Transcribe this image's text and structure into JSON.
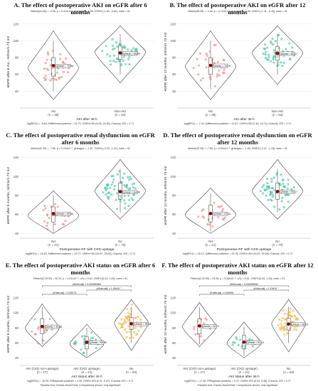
{
  "figure": {
    "panels": [
      {
        "id": "A",
        "title": "A. The effect of postoperative AKI on eGFR after 6 months",
        "stats_top": "tWelch(51.56) = -4.98, p = 5.41x10⁻⁶, ĝHedges = -1.06, CI95% [-1.54, -0.61], nobs = 91",
        "stats_bottom": "log(BF01) = -8.64, δdifference posterior = 14.75, CI95% HDI [9.08, 20.90], rCauchy JZS = 0.71",
        "chart_data": {
          "type": "violin",
          "xlabel": "AKI after 48 h",
          "ylabel": "eGFR after 6 mo., ml/min/1.73 m2",
          "ylim": [
            20,
            130
          ],
          "yticks": [
            40,
            60,
            80,
            100,
            120
          ],
          "categories": [
            "AKI",
            "Non-AKI"
          ],
          "n_labels": [
            "(n = 38)",
            "(n = 53)"
          ],
          "colors": [
            "#e8837e",
            "#3fbfa0"
          ],
          "means": [
            70.56,
            85.54
          ],
          "mean_labels": [
            "μ̂mean = 70.56",
            "μ̂mean = 85.54"
          ],
          "medians": [
            68,
            87
          ],
          "quartiles": [
            [
              58,
              80
            ],
            [
              78,
              94
            ]
          ],
          "whiskers": [
            [
              40,
              100
            ],
            [
              60,
              108
            ]
          ],
          "ranges": [
            [
              30,
              112
            ],
            [
              50,
              118
            ]
          ]
        }
      },
      {
        "id": "B",
        "title": "B. The effect of postoperative AKI on eGFR after 12 months",
        "stats_top": "tWelch(58.55) = -4.40, p = 4.71x10⁻⁵, ĝHedges = -0.95, CI95% [-1.41, -0.49], nobs = 91",
        "stats_bottom": "log(BF01) = -7.34, δdifference posterior = 13.47, CI95% HDI [7.46, 19.71], rCauchy JZS = 0.71",
        "chart_data": {
          "type": "violin",
          "xlabel": "AKI after 48 h",
          "ylabel": "eGFR after 12 months, ml/min/1.73 m2",
          "ylim": [
            20,
            130
          ],
          "yticks": [
            40,
            60,
            80,
            100,
            120
          ],
          "categories": [
            "AKI",
            "Non-AKI"
          ],
          "n_labels": [
            "(n = 38)",
            "(n = 53)"
          ],
          "colors": [
            "#e8837e",
            "#3fbfa0"
          ],
          "means": [
            70.76,
            85.17
          ],
          "mean_labels": [
            "μ̂mean = 70.76",
            "μ̂mean = 85.17"
          ],
          "medians": [
            70,
            86
          ],
          "quartiles": [
            [
              60,
              80
            ],
            [
              77,
              93
            ]
          ],
          "whiskers": [
            [
              42,
              100
            ],
            [
              60,
              108
            ]
          ],
          "ranges": [
            [
              30,
              112
            ],
            [
              48,
              118
            ]
          ]
        }
      },
      {
        "id": "C",
        "title": "C. The effect of postoperative renal dysfunction on eGFR after 6 months",
        "stats_top": "tWelch(32.30) = -7.66, p = 9.23x10⁻⁹, ĝHedges = -1.87, CI95% [-2.53, -1.21], nobs = 91",
        "stats_bottom": "log(BF01) = -16.63, δdifference posterior = 22.77, CI95% HDI [16.57, 28.82], rCauchy JZS = 0.71",
        "chart_data": {
          "type": "violin",
          "xlabel": "Postoperative RF with CKD upstage",
          "ylabel": "eGFR after 6 months, ml/min/1.73 m2",
          "ylim": [
            35,
            125
          ],
          "yticks": [
            40,
            60,
            80,
            100,
            120
          ],
          "categories": [
            "Yes",
            "No"
          ],
          "n_labels": [
            "(n = 21)",
            "(n = 70)"
          ],
          "colors": [
            "#e8837e",
            "#3fbfa0"
          ],
          "means": [
            60.99,
            84.06
          ],
          "mean_labels": [
            "μ̂mean = 60.99",
            "μ̂mean = 84.06"
          ],
          "medians": [
            59,
            85
          ],
          "quartiles": [
            [
              52,
              68
            ],
            [
              76,
              93
            ]
          ],
          "whiskers": [
            [
              42,
              80
            ],
            [
              62,
              108
            ]
          ],
          "ranges": [
            [
              40,
              85
            ],
            [
              55,
              118
            ]
          ]
        }
      },
      {
        "id": "D",
        "title": "D. The effect of postoperative renal dysfunction on eGFR after 12 months",
        "stats_top": "tWelch(33.39) = -7.56, p = 9.93x10⁻⁹, ĝHedges = -1.83, CI95% [-2.47, -1.18], nobs = 91",
        "stats_bottom": "log(BF01) = -16.12, δdifference posterior = 22.76, CI95% HDI [16.57, 29.08], rCauchy JZS = 0.71",
        "chart_data": {
          "type": "violin",
          "xlabel": "Postoperative RF with CKD upstage",
          "ylabel": "eGFR after 12 months, ml/min/1.73 m2",
          "ylim": [
            35,
            125
          ],
          "yticks": [
            40,
            60,
            80,
            100,
            120
          ],
          "categories": [
            "Yes",
            "No"
          ],
          "n_labels": [
            "(n = 21)",
            "(n = 70)"
          ],
          "colors": [
            "#e8837e",
            "#3fbfa0"
          ],
          "means": [
            61.1,
            84.17
          ],
          "mean_labels": [
            "μ̂mean = 61.10",
            "μ̂mean = 84.17"
          ],
          "medians": [
            60,
            85
          ],
          "quartiles": [
            [
              52,
              70
            ],
            [
              76,
              93
            ]
          ],
          "whiskers": [
            [
              42,
              82
            ],
            [
              62,
              108
            ]
          ],
          "ranges": [
            [
              40,
              88
            ],
            [
              55,
              118
            ]
          ]
        }
      },
      {
        "id": "E",
        "title": "E. The effect of postoperative AKI status on eGFR after 6 months",
        "stats_top": "FWelch(2,33.53) = 30.34, p = 3.01x10⁻⁸, ω²p = 0.62, CI95% [0.43, 1.00], nobs = 91",
        "stats_bottom": "log(BF01) = -16.99, R²Bayesian posterior = 0.35, CI95% HDI [0.21, 0.47], rCauchy JZS = 0.71",
        "footnote": "Pairwise test: Games-Howell test; Comparisons shown: only significant",
        "chart_data": {
          "type": "violin",
          "xlabel": "AKI status after 48 h",
          "ylabel": "eGFR after 6 months, ml/min/1.73 m2",
          "ylim": [
            30,
            140
          ],
          "yticks": [
            40,
            60,
            80,
            100,
            120
          ],
          "categories": [
            "AKI (CKD non-upstage)",
            "AKI (CKD upstage)",
            "No"
          ],
          "n_labels": [
            "(n = 17)",
            "(n = 21)",
            "(n = 53)"
          ],
          "colors": [
            "#e8837e",
            "#3fbfa0",
            "#f0b541"
          ],
          "means": [
            81.98,
            60.99,
            85.54
          ],
          "mean_labels": [
            "μ̂mean = 81.98",
            "μ̂mean = 60.99",
            "μ̂mean = 85.54"
          ],
          "medians": [
            80,
            59,
            87
          ],
          "quartiles": [
            [
              72,
              92
            ],
            [
              52,
              68
            ],
            [
              78,
              94
            ]
          ],
          "whiskers": [
            [
              58,
              108
            ],
            [
              42,
              80
            ],
            [
              60,
              108
            ]
          ],
          "ranges": [
            [
              55,
              112
            ],
            [
              40,
              85
            ],
            [
              50,
              118
            ]
          ],
          "comparisons": [
            {
              "from": 0,
              "to": 1,
              "label": "pHolm-adj. = 0.00274"
            },
            {
              "from": 1,
              "to": 2,
              "label": "pHolm-adj. = 1.49x10⁻⁷"
            },
            {
              "from": 0,
              "to": 2,
              "label": "pHolm-adj. = 0.000000364"
            }
          ]
        }
      },
      {
        "id": "F",
        "title": "F. The effect of postoperative AKI status on eGFR after 12 months",
        "stats_top": "FWelch(2,32.50) = 29.28, p = 5.38x10⁻⁸, ω²p = 0.61, CI95% [0.42, 1.00], nobs = 91",
        "stats_bottom": "log(BF01) = -17.26, R²Bayesian posterior = 0.37, CI95% HDI [0.24, 0.48], rCauchy JZS = 0.71",
        "footnote": "Pairwise test: Games-Howell test; Comparisons shown: only significant",
        "chart_data": {
          "type": "violin",
          "xlabel": "AKI status after 48 h",
          "ylabel": "eGFR after 12 months, ml/min/1.73 m2",
          "ylim": [
            30,
            140
          ],
          "yticks": [
            40,
            60,
            80,
            100,
            120
          ],
          "categories": [
            "AKI (CKD non-upstage)",
            "AKI (CKD upstage)",
            "No"
          ],
          "n_labels": [
            "(n = 17)",
            "(n = 21)",
            "(n = 53)"
          ],
          "colors": [
            "#e8837e",
            "#3fbfa0",
            "#f0b541"
          ],
          "means": [
            82.71,
            61.1,
            85.17
          ],
          "mean_labels": [
            "μ̂mean = 82.71",
            "μ̂mean = 61.10",
            "μ̂mean = 85.17"
          ],
          "medians": [
            82,
            60,
            86
          ],
          "quartiles": [
            [
              72,
              92
            ],
            [
              52,
              70
            ],
            [
              77,
              93
            ]
          ],
          "whiskers": [
            [
              58,
              108
            ],
            [
              42,
              82
            ],
            [
              60,
              108
            ]
          ],
          "ranges": [
            [
              55,
              114
            ],
            [
              40,
              88
            ],
            [
              48,
              118
            ]
          ],
          "comparisons": [
            {
              "from": 0,
              "to": 1,
              "label": "pHolm-adj. = 0.00296"
            },
            {
              "from": 1,
              "to": 2,
              "label": "pHolm-adj. = 1.19x10⁻⁷"
            },
            {
              "from": 0,
              "to": 2,
              "label": "pHolm-adj. = 0.000000542"
            }
          ]
        }
      }
    ]
  }
}
